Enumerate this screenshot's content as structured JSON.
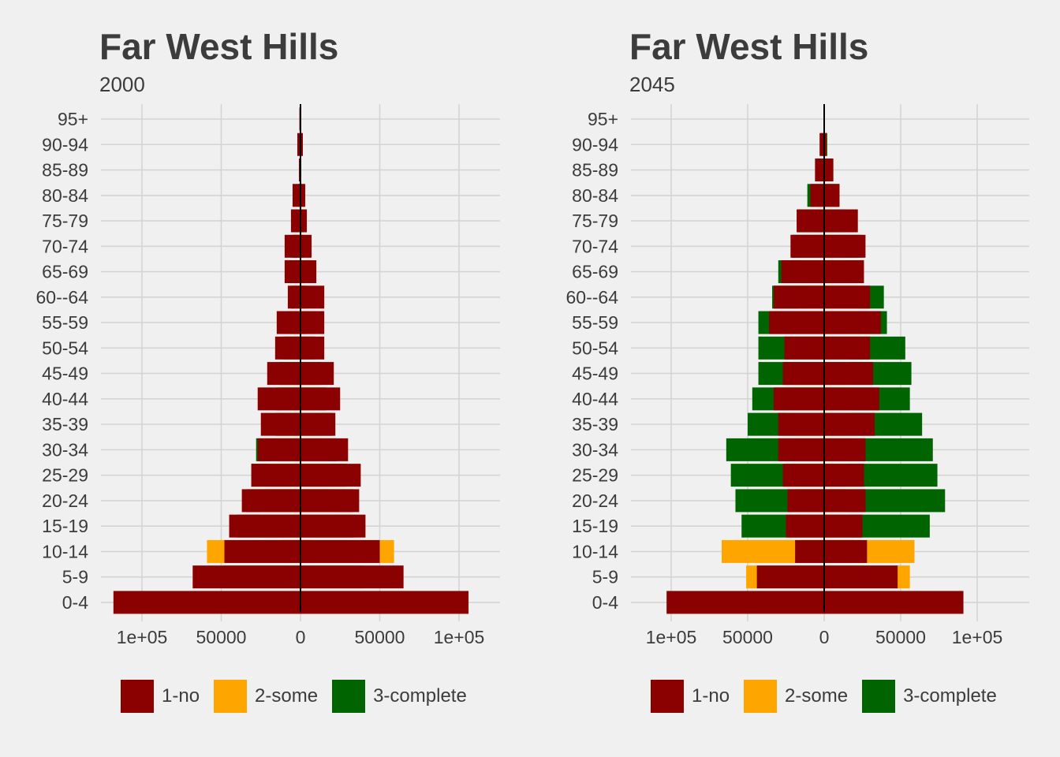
{
  "colors": {
    "1-no": "#8b0000",
    "2-some": "#ffa500",
    "3-complete": "#006400"
  },
  "legend": [
    {
      "key": "1-no",
      "label": "1-no",
      "color": "#8b0000"
    },
    {
      "key": "2-some",
      "label": "2-some",
      "color": "#ffa500"
    },
    {
      "key": "3-complete",
      "label": "3-complete",
      "color": "#006400"
    }
  ],
  "chart_data": [
    {
      "type": "bar",
      "orientation": "horizontal-diverging",
      "title": "Far West Hills",
      "subtitle": "2000",
      "categories": [
        "0-4",
        "5-9",
        "10-14",
        "15-19",
        "20-24",
        "25-29",
        "30-34",
        "35-39",
        "40-44",
        "45-49",
        "50-54",
        "55-59",
        "60--64",
        "65-69",
        "70-74",
        "75-79",
        "80-84",
        "85-89",
        "90-94",
        "95+"
      ],
      "xlim": [
        -130000,
        130000
      ],
      "x_ticks": [
        -100000,
        -50000,
        0,
        50000,
        100000
      ],
      "x_tick_labels": [
        "1e+05",
        "50000",
        "0",
        "50000",
        "1e+05"
      ],
      "grid": true,
      "legend_position": "bottom",
      "series": [
        {
          "name": "3-complete",
          "left": [
            0,
            0,
            12000,
            40000,
            34000,
            31000,
            28000,
            16000,
            15000,
            13000,
            10000,
            6000,
            6000,
            7000,
            5000,
            2500,
            1500,
            500,
            500,
            300
          ],
          "right": [
            0,
            0,
            8000,
            33000,
            33000,
            29000,
            23000,
            20000,
            16000,
            13000,
            9000,
            3500,
            3500,
            2000,
            2000,
            2000,
            500,
            200,
            200,
            100
          ]
        },
        {
          "name": "2-some",
          "left": [
            0,
            49000,
            59000,
            26000,
            25000,
            21000,
            18000,
            16000,
            12000,
            11000,
            12000,
            9000,
            4500,
            0,
            1500,
            1500,
            1000,
            800,
            500,
            300
          ],
          "right": [
            0,
            39000,
            59000,
            35000,
            21000,
            19000,
            17000,
            14000,
            12000,
            11000,
            9000,
            9000,
            5000,
            3000,
            1500,
            1000,
            500,
            300,
            300,
            100
          ]
        },
        {
          "name": "1-no",
          "left": [
            118000,
            68000,
            48000,
            45000,
            37000,
            31000,
            27000,
            25000,
            27000,
            21000,
            16000,
            15000,
            8000,
            10000,
            10000,
            6000,
            5000,
            1000,
            2000,
            700
          ],
          "right": [
            106000,
            65000,
            50000,
            41000,
            37000,
            38000,
            30000,
            22000,
            25000,
            21000,
            15000,
            15000,
            15000,
            10000,
            7000,
            4000,
            3000,
            500,
            1500,
            500
          ]
        }
      ]
    },
    {
      "type": "bar",
      "orientation": "horizontal-diverging",
      "title": "Far West Hills",
      "subtitle": "2045",
      "categories": [
        "0-4",
        "5-9",
        "10-14",
        "15-19",
        "20-24",
        "25-29",
        "30-34",
        "35-39",
        "40-44",
        "45-49",
        "50-54",
        "55-59",
        "60--64",
        "65-69",
        "70-74",
        "75-79",
        "80-84",
        "85-89",
        "90-94",
        "95+"
      ],
      "xlim": [
        -130000,
        135000
      ],
      "x_ticks": [
        -100000,
        -50000,
        0,
        50000,
        100000
      ],
      "x_tick_labels": [
        "1e+05",
        "50000",
        "0",
        "50000",
        "1e+05"
      ],
      "grid": true,
      "legend_position": "bottom",
      "series": [
        {
          "name": "3-complete",
          "left": [
            0,
            0,
            15000,
            54000,
            58000,
            61000,
            64000,
            50000,
            47000,
            43000,
            43000,
            43000,
            34000,
            30000,
            21000,
            17000,
            11000,
            5000,
            2000,
            500
          ],
          "right": [
            0,
            0,
            19000,
            69000,
            79000,
            74000,
            71000,
            64000,
            56000,
            57000,
            53000,
            41000,
            39000,
            25000,
            24000,
            14000,
            10000,
            4000,
            2000,
            500
          ]
        },
        {
          "name": "2-some",
          "left": [
            0,
            51000,
            67000,
            24000,
            19000,
            26000,
            21000,
            25000,
            23000,
            19000,
            23000,
            19000,
            17000,
            16000,
            15000,
            8000,
            5000,
            2000,
            1500,
            500
          ],
          "right": [
            0,
            56000,
            59000,
            17000,
            14000,
            16000,
            24000,
            19000,
            18000,
            17000,
            17000,
            22000,
            23000,
            15000,
            13000,
            9000,
            5000,
            3000,
            1500,
            500
          ]
        },
        {
          "name": "1-no",
          "left": [
            103000,
            44000,
            19000,
            25000,
            24000,
            27000,
            30000,
            30000,
            33000,
            27000,
            26000,
            36000,
            33000,
            28000,
            22000,
            18000,
            9000,
            6000,
            3000,
            500
          ],
          "right": [
            91000,
            48000,
            28000,
            25000,
            27000,
            26000,
            27000,
            33000,
            36000,
            32000,
            30000,
            37000,
            30000,
            26000,
            27000,
            22000,
            10000,
            6000,
            1500,
            500
          ]
        }
      ]
    }
  ]
}
